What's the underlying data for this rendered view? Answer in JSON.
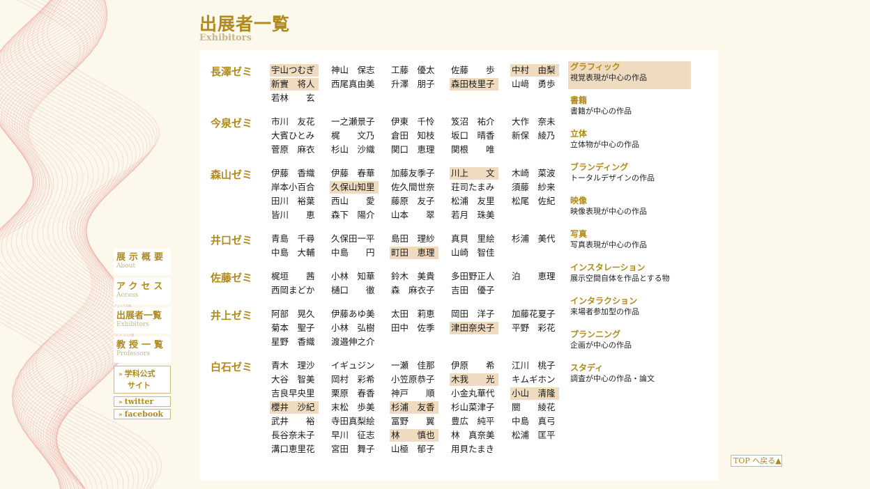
{
  "header": {
    "title_jp": "出展者一覧",
    "title_en": "Exhibitors"
  },
  "colors": {
    "accent": "#b08a1c",
    "highlight": "#efdcc0",
    "background": "#fdf8ec"
  },
  "zemis": [
    {
      "label": "長澤ゼミ",
      "rows": [
        [
          {
            "n": "宇山つむぎ",
            "h": true
          },
          {
            "n": "神山　保志"
          },
          {
            "n": "工藤　優太"
          },
          {
            "n": "佐藤　　歩"
          },
          {
            "n": "中村　由梨",
            "h": true
          }
        ],
        [
          {
            "n": "新實　将人",
            "h": true
          },
          {
            "n": "西尾真由美"
          },
          {
            "n": "升澤　朋子"
          },
          {
            "n": "森田枝里子",
            "h": true
          },
          {
            "n": "山﨑　勇歩"
          }
        ],
        [
          {
            "n": "若林　　玄"
          }
        ]
      ]
    },
    {
      "label": "今泉ゼミ",
      "rows": [
        [
          {
            "n": "市川　友花"
          },
          {
            "n": "一之瀬景子"
          },
          {
            "n": "伊東　千怜"
          },
          {
            "n": "笈沼　祐介"
          },
          {
            "n": "大作　奈未"
          }
        ],
        [
          {
            "n": "大賓ひとみ"
          },
          {
            "n": "梶　　文乃"
          },
          {
            "n": "倉田　知枝"
          },
          {
            "n": "坂口　晴香"
          },
          {
            "n": "新保　綾乃"
          }
        ],
        [
          {
            "n": "菅原　麻衣"
          },
          {
            "n": "杉山　沙織"
          },
          {
            "n": "関口　恵理"
          },
          {
            "n": "関根　　唯"
          }
        ]
      ]
    },
    {
      "label": "森山ゼミ",
      "rows": [
        [
          {
            "n": "伊藤　香織"
          },
          {
            "n": "伊藤　春華"
          },
          {
            "n": "加藤友季子"
          },
          {
            "n": "川上　　文",
            "h": true
          },
          {
            "n": "木崎　菜波"
          }
        ],
        [
          {
            "n": "岸本小百合"
          },
          {
            "n": "久保山知里",
            "h": true
          },
          {
            "n": "佐久間世奈"
          },
          {
            "n": "荘司たまみ"
          },
          {
            "n": "須藤　紗来"
          }
        ],
        [
          {
            "n": "田川　裕葉"
          },
          {
            "n": "西山　　愛"
          },
          {
            "n": "藤原　友子"
          },
          {
            "n": "松浦　友里"
          },
          {
            "n": "松尾　佐紀"
          }
        ],
        [
          {
            "n": "皆川　　恵"
          },
          {
            "n": "森下　陽介"
          },
          {
            "n": "山本　　翠"
          },
          {
            "n": "若月　珠美"
          }
        ]
      ]
    },
    {
      "label": "井口ゼミ",
      "rows": [
        [
          {
            "n": "青島　千尋"
          },
          {
            "n": "久保田一平"
          },
          {
            "n": "島田　理紗"
          },
          {
            "n": "真貝　里絵"
          },
          {
            "n": "杉浦　美代"
          }
        ],
        [
          {
            "n": "中島　大輔"
          },
          {
            "n": "中島　　円"
          },
          {
            "n": "町田　恵理",
            "h": true
          },
          {
            "n": "山崎　智佳"
          }
        ]
      ]
    },
    {
      "label": "佐藤ゼミ",
      "rows": [
        [
          {
            "n": "梶垣　　茜"
          },
          {
            "n": "小林　知華"
          },
          {
            "n": "鈴木　美貴"
          },
          {
            "n": "多田野正人"
          },
          {
            "n": "泊　　恵理"
          }
        ],
        [
          {
            "n": "西岡まどか"
          },
          {
            "n": "樋口　　徹"
          },
          {
            "n": "森　麻衣子"
          },
          {
            "n": "吉田　優子"
          }
        ]
      ]
    },
    {
      "label": "井上ゼミ",
      "rows": [
        [
          {
            "n": "阿部　晃久"
          },
          {
            "n": "伊藤あゆ美"
          },
          {
            "n": "太田　莉恵"
          },
          {
            "n": "岡田　洋子"
          },
          {
            "n": "加藤花夏子"
          }
        ],
        [
          {
            "n": "菊本　聖子"
          },
          {
            "n": "小林　弘樹"
          },
          {
            "n": "田中　佐季"
          },
          {
            "n": "津田奈央子",
            "h": true
          },
          {
            "n": "平野　彩花"
          }
        ],
        [
          {
            "n": "星野　香織"
          },
          {
            "n": "渡邉伸之介"
          }
        ]
      ]
    },
    {
      "label": "白石ゼミ",
      "rows": [
        [
          {
            "n": "青木　理沙"
          },
          {
            "n": "イギュジン"
          },
          {
            "n": "一瀬　佳那"
          },
          {
            "n": "伊原　　希"
          },
          {
            "n": "江川　桃子"
          }
        ],
        [
          {
            "n": "大谷　智美"
          },
          {
            "n": "岡村　彩希"
          },
          {
            "n": "小笠原恭子"
          },
          {
            "n": "木我　　光",
            "h": true
          },
          {
            "n": "キムギホン"
          }
        ],
        [
          {
            "n": "吉良早央里"
          },
          {
            "n": "栗原　春香"
          },
          {
            "n": "神戸　　順"
          },
          {
            "n": "小金丸華代"
          },
          {
            "n": "小山　清隆",
            "h": true
          }
        ],
        [
          {
            "n": "櫻井　沙紀",
            "h": true
          },
          {
            "n": "末松　歩美"
          },
          {
            "n": "杉浦　友香",
            "h": true
          },
          {
            "n": "杉山菜津子"
          },
          {
            "n": "關　　綾花"
          }
        ],
        [
          {
            "n": "武井　　裕"
          },
          {
            "n": "寺田真梨絵"
          },
          {
            "n": "冨野　　翼"
          },
          {
            "n": "豊広　純平"
          },
          {
            "n": "中島　真弓"
          }
        ],
        [
          {
            "n": "長谷奈未子"
          },
          {
            "n": "早川　征志"
          },
          {
            "n": "林　　慎也",
            "h": true
          },
          {
            "n": "林　真奈美"
          },
          {
            "n": "松浦　匡平"
          }
        ],
        [
          {
            "n": "溝口恵里花"
          },
          {
            "n": "宮田　舞子"
          },
          {
            "n": "山極　郁子"
          },
          {
            "n": "用貝たまき"
          }
        ]
      ]
    }
  ],
  "categories": [
    {
      "title": "グラフィック",
      "desc": "視覚表現が中心の作品",
      "h": true
    },
    {
      "title": "書籍",
      "desc": "書籍が中心の作品"
    },
    {
      "title": "立体",
      "desc": "立体物が中心の作品"
    },
    {
      "title": "ブランディング",
      "desc": "トータルデザインの作品"
    },
    {
      "title": "映像",
      "desc": "映像表現が中心の作品"
    },
    {
      "title": "写真",
      "desc": "写真表現が中心の作品"
    },
    {
      "title": "インスタレーション",
      "desc": "展示空間自体を作品とする物"
    },
    {
      "title": "インタラクション",
      "desc": "来場者参加型の作品"
    },
    {
      "title": "プランニング",
      "desc": "企画が中心の作品"
    },
    {
      "title": "スタディ",
      "desc": "調査が中心の作品・論文"
    }
  ],
  "nav": {
    "about_jp": "展示概要",
    "about_en": "About",
    "access_jp": "アクセス",
    "access_en": "Access",
    "exhibitors_jp": "出展者一覧",
    "exhibitors_en": "Exhibitors",
    "professors_jp": "教授一覧",
    "professors_en": "Professors",
    "site_line1": "学科公式",
    "site_line2": "サイト",
    "twitter": "twitter",
    "facebook": "facebook",
    "arrow_glyph": "»"
  },
  "top_button": "TOP へ戻る▲"
}
